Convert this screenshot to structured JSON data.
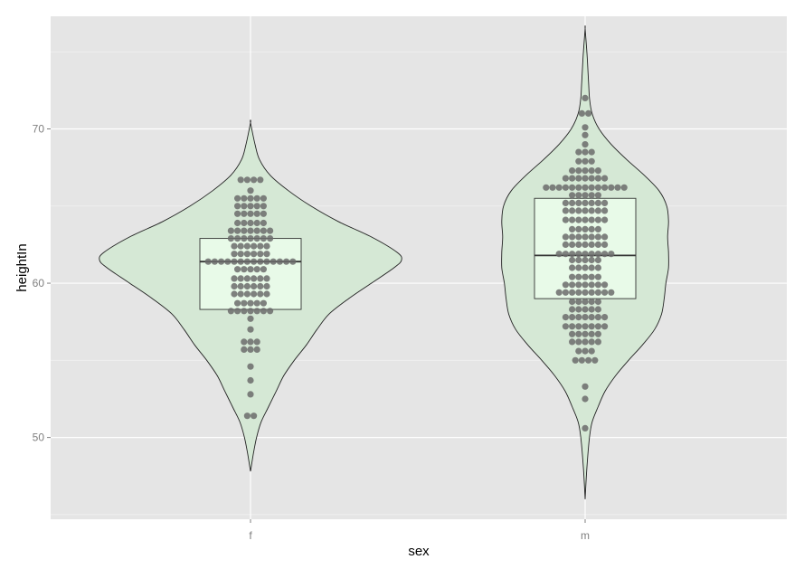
{
  "chart_data": {
    "type": "violin",
    "xlabel": "sex",
    "ylabel": "heightIn",
    "categories": [
      "f",
      "m"
    ],
    "yticks": [
      50,
      60,
      70
    ],
    "ytick_labels": [
      "50",
      "60",
      "70"
    ],
    "ylim": [
      44.7,
      77.3
    ],
    "grid": true,
    "legend": "none",
    "colors": {
      "panel": "#e5e5e5",
      "grid_major": "#ffffff",
      "violin_fill": "#d5e8d5",
      "box_fill": "#e8fae8",
      "dots": "#6b6b6b"
    },
    "groups": [
      {
        "name": "f",
        "violin_range": [
          47.8,
          70.4
        ],
        "violin_profile": [
          [
            47.8,
            0.0
          ],
          [
            49.0,
            0.02
          ],
          [
            50.0,
            0.04
          ],
          [
            51.0,
            0.07
          ],
          [
            52.0,
            0.12
          ],
          [
            53.0,
            0.17
          ],
          [
            54.0,
            0.22
          ],
          [
            55.0,
            0.29
          ],
          [
            56.0,
            0.37
          ],
          [
            57.0,
            0.44
          ],
          [
            58.0,
            0.52
          ],
          [
            59.0,
            0.65
          ],
          [
            60.0,
            0.8
          ],
          [
            61.0,
            0.95
          ],
          [
            61.5,
            1.0
          ],
          [
            62.0,
            0.97
          ],
          [
            63.0,
            0.8
          ],
          [
            64.0,
            0.58
          ],
          [
            65.0,
            0.4
          ],
          [
            66.0,
            0.25
          ],
          [
            67.0,
            0.13
          ],
          [
            68.0,
            0.06
          ],
          [
            69.0,
            0.03
          ],
          [
            70.4,
            0.0
          ]
        ],
        "box": {
          "lower": 58.3,
          "q1": 58.3,
          "median": 61.4,
          "q3": 62.9,
          "upper": 62.9
        },
        "dot_rows": [
          [
            51.4,
            2
          ],
          [
            52.8,
            1
          ],
          [
            53.7,
            1
          ],
          [
            54.6,
            1
          ],
          [
            55.7,
            3
          ],
          [
            56.2,
            3
          ],
          [
            57.0,
            1
          ],
          [
            57.7,
            1
          ],
          [
            58.2,
            7
          ],
          [
            58.7,
            5
          ],
          [
            59.3,
            6
          ],
          [
            59.8,
            6
          ],
          [
            60.3,
            6
          ],
          [
            60.9,
            5
          ],
          [
            61.4,
            14
          ],
          [
            61.9,
            6
          ],
          [
            62.4,
            6
          ],
          [
            62.9,
            7
          ],
          [
            63.4,
            7
          ],
          [
            63.9,
            5
          ],
          [
            64.5,
            5
          ],
          [
            65.0,
            5
          ],
          [
            65.5,
            5
          ],
          [
            66.0,
            1
          ],
          [
            66.7,
            4
          ]
        ]
      },
      {
        "name": "m",
        "violin_range": [
          46.0,
          76.5
        ],
        "violin_profile": [
          [
            46.0,
            0.0
          ],
          [
            48.0,
            0.02
          ],
          [
            50.0,
            0.05
          ],
          [
            51.0,
            0.08
          ],
          [
            52.0,
            0.15
          ],
          [
            53.0,
            0.23
          ],
          [
            54.0,
            0.35
          ],
          [
            55.0,
            0.5
          ],
          [
            56.0,
            0.66
          ],
          [
            57.0,
            0.8
          ],
          [
            58.0,
            0.88
          ],
          [
            59.0,
            0.91
          ],
          [
            60.0,
            0.93
          ],
          [
            61.0,
            0.96
          ],
          [
            62.0,
            0.96
          ],
          [
            63.0,
            0.95
          ],
          [
            64.0,
            0.96
          ],
          [
            65.0,
            0.94
          ],
          [
            66.0,
            0.85
          ],
          [
            67.0,
            0.68
          ],
          [
            68.0,
            0.48
          ],
          [
            69.0,
            0.3
          ],
          [
            70.0,
            0.16
          ],
          [
            71.0,
            0.08
          ],
          [
            72.0,
            0.05
          ],
          [
            73.0,
            0.04
          ],
          [
            74.0,
            0.03
          ],
          [
            75.0,
            0.02
          ],
          [
            76.5,
            0.0
          ]
        ],
        "box": {
          "lower": 59.0,
          "q1": 59.0,
          "median": 61.8,
          "q3": 65.5,
          "upper": 65.5
        },
        "dot_rows": [
          [
            50.6,
            1
          ],
          [
            52.5,
            1
          ],
          [
            53.3,
            1
          ],
          [
            55.0,
            4
          ],
          [
            55.6,
            3
          ],
          [
            56.2,
            5
          ],
          [
            56.7,
            5
          ],
          [
            57.2,
            7
          ],
          [
            57.8,
            7
          ],
          [
            58.3,
            5
          ],
          [
            58.8,
            5
          ],
          [
            59.4,
            9
          ],
          [
            59.9,
            7
          ],
          [
            60.4,
            5
          ],
          [
            61.0,
            5
          ],
          [
            61.5,
            5
          ],
          [
            61.9,
            9
          ],
          [
            62.5,
            7
          ],
          [
            63.0,
            7
          ],
          [
            63.5,
            5
          ],
          [
            64.1,
            7
          ],
          [
            64.7,
            7
          ],
          [
            65.2,
            7
          ],
          [
            65.7,
            5
          ],
          [
            66.2,
            13
          ],
          [
            66.8,
            7
          ],
          [
            67.3,
            5
          ],
          [
            67.9,
            3
          ],
          [
            68.5,
            3
          ],
          [
            69.0,
            1
          ],
          [
            69.6,
            1
          ],
          [
            70.1,
            1
          ],
          [
            71.0,
            2
          ],
          [
            72.0,
            1
          ]
        ]
      }
    ]
  }
}
